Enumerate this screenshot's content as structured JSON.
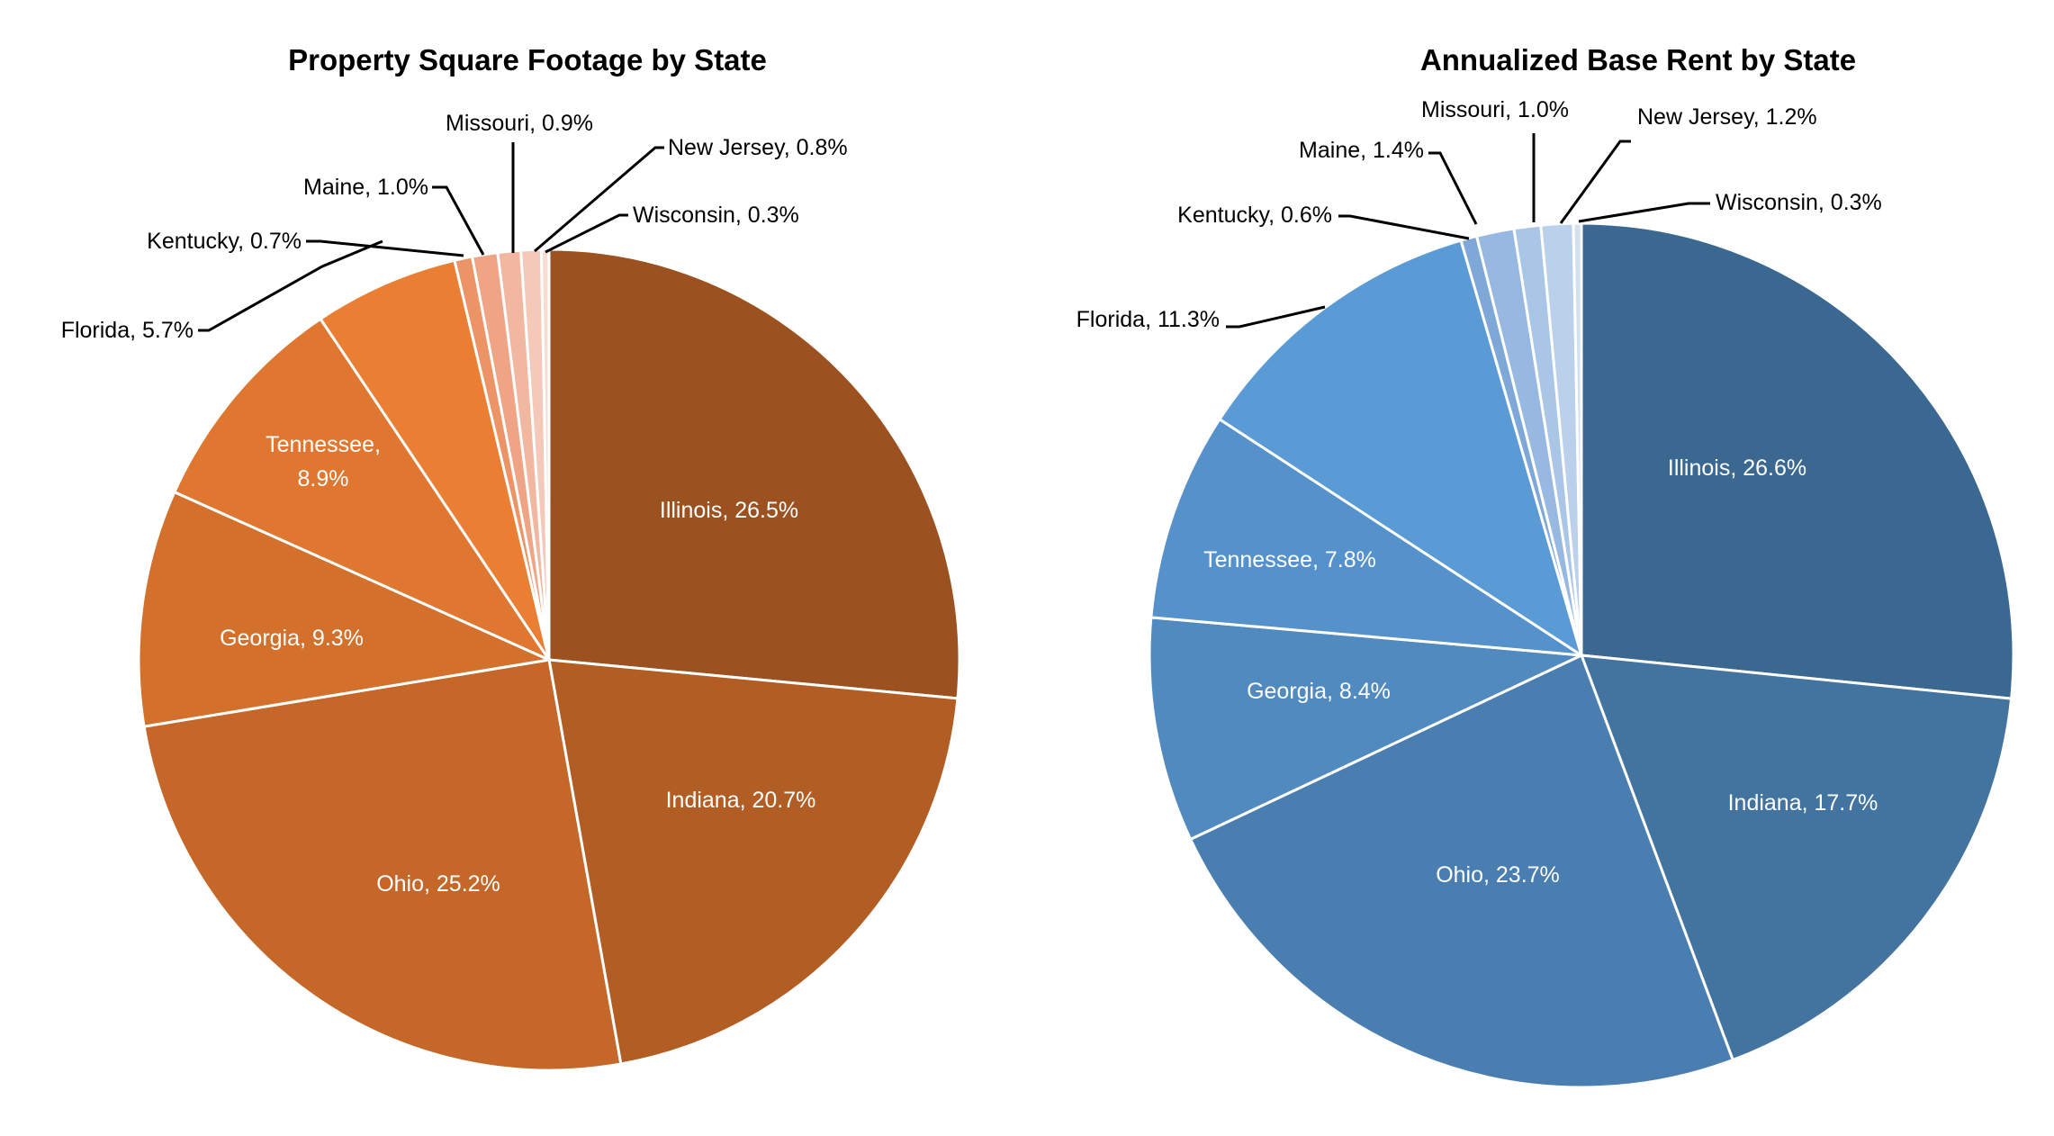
{
  "chart_data": [
    {
      "type": "pie",
      "title": "Property Square Footage by State",
      "start": "12 o'clock, clockwise",
      "categories": [
        "Illinois",
        "Indiana",
        "Ohio",
        "Georgia",
        "Tennessee",
        "Florida",
        "Kentucky",
        "Maine",
        "Missouri",
        "New Jersey",
        "Wisconsin"
      ],
      "values": [
        26.5,
        20.7,
        25.2,
        9.3,
        8.9,
        5.7,
        0.7,
        1.0,
        0.9,
        0.8,
        0.3
      ],
      "unit": "%",
      "colors": [
        "#9C5120",
        "#B15D23",
        "#C46729",
        "#D2702C",
        "#DF7731",
        "#EA7F33",
        "#EC9466",
        "#EFA585",
        "#F2B7A0",
        "#F5C9BA",
        "#F8DCD2"
      ],
      "labels": [
        "Illinois, 26.5%",
        "Indiana, 20.7%",
        "Ohio, 25.2%",
        "Georgia, 9.3%",
        [
          "Tennessee,",
          "8.9%"
        ],
        "Florida, 5.7%",
        "Kentucky, 0.7%",
        "Maine, 1.0%",
        "Missouri, 0.9%",
        "New Jersey, 0.8%",
        "Wisconsin, 0.3%"
      ],
      "label_placement": [
        "inside",
        "inside",
        "inside",
        "inside",
        "inside",
        "outside",
        "outside",
        "outside",
        "outside",
        "outside",
        "outside"
      ]
    },
    {
      "type": "pie",
      "title": "Annualized Base Rent by State",
      "start": "12 o'clock, clockwise",
      "categories": [
        "Illinois",
        "Indiana",
        "Ohio",
        "Georgia",
        "Tennessee",
        "Florida",
        "Kentucky",
        "Maine",
        "Missouri",
        "New Jersey",
        "Wisconsin"
      ],
      "values": [
        26.6,
        17.7,
        23.7,
        8.4,
        7.8,
        11.3,
        0.6,
        1.4,
        1.0,
        1.2,
        0.3
      ],
      "unit": "%",
      "colors": [
        "#3B6890",
        "#43739F",
        "#4A7EB0",
        "#508ABF",
        "#5592CB",
        "#5B9BD5",
        "#7FA8D8",
        "#97B8E0",
        "#AAC6E7",
        "#BBD0EB",
        "#D3E0F0"
      ],
      "labels": [
        "Illinois, 26.6%",
        "Indiana, 17.7%",
        "Ohio, 23.7%",
        "Georgia, 8.4%",
        [
          "Tennessee, 7.8%"
        ],
        "Florida, 11.3%",
        "Kentucky, 0.6%",
        "Maine, 1.4%",
        "Missouri, 1.0%",
        "New Jersey, 1.2%",
        "Wisconsin, 0.3%"
      ],
      "label_placement": [
        "inside",
        "inside",
        "inside",
        "inside",
        "inside",
        "outside",
        "outside",
        "outside",
        "outside",
        "outside",
        "outside"
      ]
    }
  ]
}
